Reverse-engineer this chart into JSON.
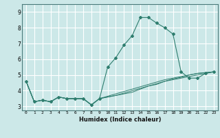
{
  "xlabel": "Humidex (Indice chaleur)",
  "ylabel": "",
  "background_color": "#cce8e8",
  "grid_color": "#ffffff",
  "line_color": "#2e7d6e",
  "xlim": [
    -0.5,
    23.5
  ],
  "ylim": [
    2.75,
    9.5
  ],
  "xtick_labels": [
    "0",
    "1",
    "2",
    "3",
    "4",
    "5",
    "6",
    "7",
    "8",
    "9",
    "10",
    "11",
    "12",
    "13",
    "14",
    "15",
    "16",
    "17",
    "18",
    "19",
    "20",
    "21",
    "22",
    "23"
  ],
  "ytick_values": [
    3,
    4,
    5,
    6,
    7,
    8,
    9
  ],
  "series": [
    [
      4.6,
      3.3,
      3.4,
      3.3,
      3.6,
      3.5,
      3.5,
      3.5,
      3.1,
      3.5,
      5.5,
      6.1,
      6.9,
      7.5,
      8.65,
      8.65,
      8.3,
      8.0,
      7.6,
      5.2,
      4.8,
      4.8,
      5.1,
      5.2
    ],
    [
      4.6,
      3.3,
      3.4,
      3.3,
      3.6,
      3.5,
      3.5,
      3.5,
      3.1,
      3.5,
      3.6,
      3.7,
      3.8,
      3.9,
      4.1,
      4.3,
      4.4,
      4.6,
      4.7,
      4.8,
      4.9,
      5.0,
      5.1,
      5.2
    ],
    [
      4.6,
      3.3,
      3.4,
      3.3,
      3.6,
      3.5,
      3.5,
      3.5,
      3.1,
      3.5,
      3.6,
      3.7,
      3.85,
      4.0,
      4.15,
      4.3,
      4.45,
      4.6,
      4.75,
      4.85,
      5.0,
      5.1,
      5.15,
      5.2
    ],
    [
      4.6,
      3.3,
      3.4,
      3.3,
      3.6,
      3.5,
      3.5,
      3.5,
      3.1,
      3.5,
      3.65,
      3.8,
      3.95,
      4.1,
      4.25,
      4.4,
      4.55,
      4.7,
      4.8,
      4.9,
      5.0,
      5.1,
      5.15,
      5.2
    ]
  ]
}
